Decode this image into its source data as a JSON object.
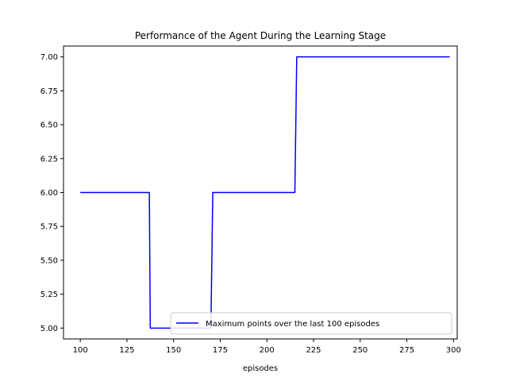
{
  "chart_data": {
    "type": "line",
    "title": "Performance of the Agent During the Learning Stage",
    "xlabel": "episodes",
    "ylabel": "",
    "xlim": [
      91,
      302
    ],
    "ylim": [
      4.92,
      7.08
    ],
    "xticks": [
      100,
      125,
      150,
      175,
      200,
      225,
      250,
      275,
      300
    ],
    "yticks": [
      "5.00",
      "5.25",
      "5.50",
      "5.75",
      "6.00",
      "6.25",
      "6.50",
      "6.75",
      "7.00"
    ],
    "grid": false,
    "legend_position": "lower right",
    "series": [
      {
        "name": "Maximum points over the last 100 episodes",
        "color": "#0000ff",
        "x": [
          100,
          137,
          137.5,
          170,
          171,
          215,
          216,
          298
        ],
        "y": [
          6,
          6,
          5,
          5,
          6,
          6,
          7,
          7
        ]
      }
    ]
  }
}
